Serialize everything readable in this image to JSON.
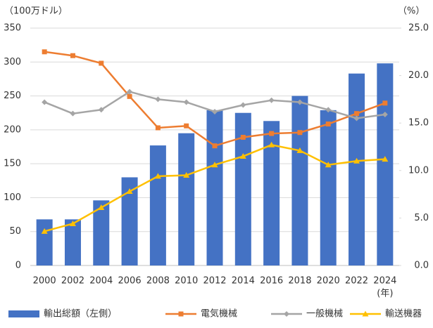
{
  "chart_data": {
    "type": "combo",
    "y_label": "（100万ドル）",
    "y2_label": "（%）",
    "x_unit": "(年)",
    "categories": [
      "2000",
      "2002",
      "2004",
      "2006",
      "2008",
      "2010",
      "2012",
      "2014",
      "2016",
      "2018",
      "2020",
      "2022",
      "2024"
    ],
    "series": [
      {
        "name": "輸出総額（左側）",
        "type": "bar",
        "axis": "y",
        "color": "#4472c4",
        "values": [
          68,
          68,
          96,
          130,
          177,
          195,
          229,
          225,
          213,
          250,
          229,
          283,
          298
        ]
      },
      {
        "name": "電気機械",
        "type": "line",
        "axis": "y2",
        "color": "#ed7d31",
        "marker": "square",
        "values": [
          22.5,
          22.1,
          21.3,
          17.8,
          14.5,
          14.7,
          12.6,
          13.5,
          13.9,
          14.0,
          14.9,
          16.0,
          17.1
        ]
      },
      {
        "name": "一般機械",
        "type": "line",
        "axis": "y2",
        "color": "#a5a5a5",
        "marker": "diamond",
        "values": [
          17.2,
          16.0,
          16.4,
          18.3,
          17.5,
          17.2,
          16.2,
          16.9,
          17.4,
          17.2,
          16.4,
          15.5,
          15.9
        ]
      },
      {
        "name": "輸送機器",
        "type": "line",
        "axis": "y2",
        "color": "#ffc000",
        "marker": "triangle",
        "values": [
          3.6,
          4.4,
          6.1,
          7.8,
          9.4,
          9.5,
          10.6,
          11.5,
          12.7,
          12.1,
          10.6,
          11.0,
          11.2
        ]
      }
    ],
    "ylim": [
      0,
      350
    ],
    "yticks": [
      0,
      50,
      100,
      150,
      200,
      250,
      300,
      350
    ],
    "y2lim": [
      0,
      25
    ],
    "y2ticks": [
      {
        "value": 0,
        "label": "0.0"
      },
      {
        "value": 5,
        "label": "5.0"
      },
      {
        "value": 10,
        "label": "10.0"
      },
      {
        "value": 15,
        "label": "15.0"
      },
      {
        "value": 20,
        "label": "20.0"
      },
      {
        "value": 25,
        "label": "25.0"
      }
    ],
    "grid": true,
    "legend": "bottom"
  }
}
